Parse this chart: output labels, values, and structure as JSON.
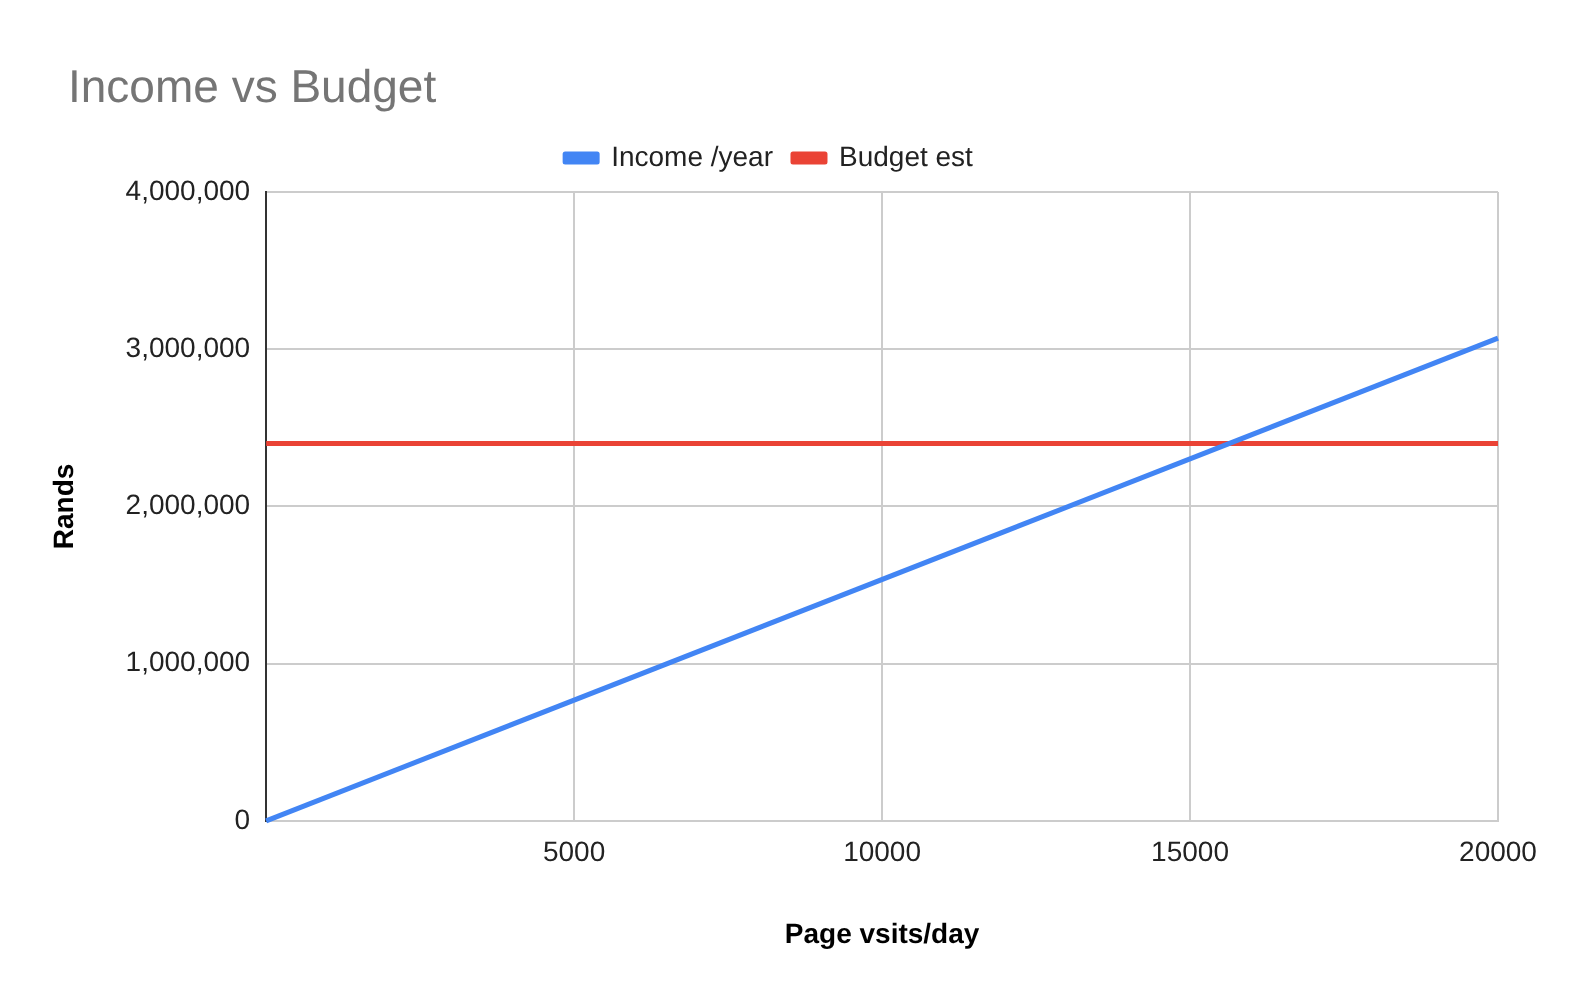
{
  "chart_data": {
    "type": "line",
    "title": "Income vs Budget",
    "xlabel": "Page vsits/day",
    "ylabel": "Rands",
    "series": [
      {
        "name": "Income /year",
        "color": "#4285f4",
        "values": [
          0,
          3070000
        ]
      },
      {
        "name": "Budget est",
        "color": "#ea4335",
        "values": [
          2400000,
          2400000
        ]
      }
    ],
    "x": [
      0,
      20000
    ],
    "xlim": [
      0,
      20000
    ],
    "xticks": [
      {
        "value": 0,
        "label": null
      },
      5000,
      10000,
      15000,
      20000
    ],
    "ylim": [
      0,
      4000000
    ],
    "yticks": [
      {
        "value": 0,
        "label": "0"
      },
      {
        "value": 1000000,
        "label": "1,000,000"
      },
      {
        "value": 2000000,
        "label": "2,000,000"
      },
      {
        "value": 3000000,
        "label": "3,000,000"
      },
      {
        "value": 4000000,
        "label": "4,000,000"
      }
    ],
    "grid": true,
    "legend": "top",
    "marker": "none",
    "line_style": "solid"
  }
}
